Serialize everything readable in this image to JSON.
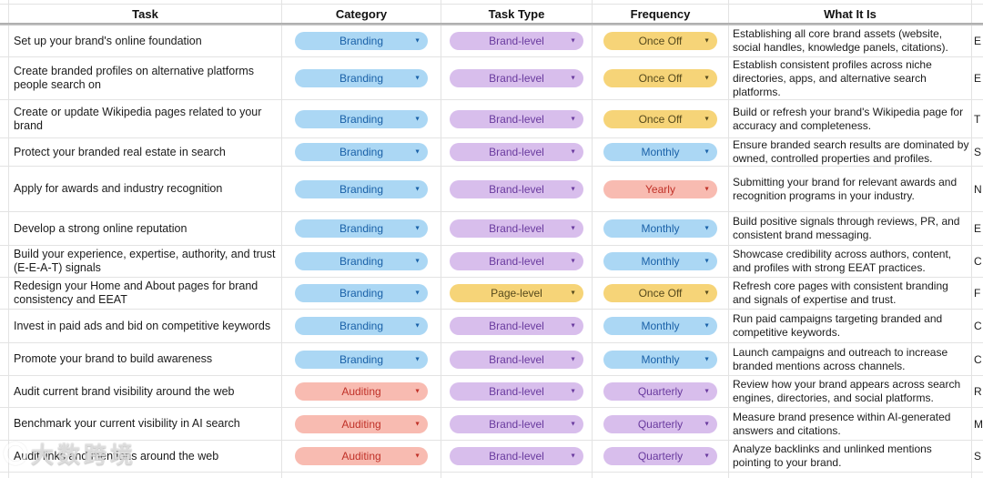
{
  "table": {
    "headers": [
      "Task",
      "Category",
      "Task Type",
      "Frequency",
      "What It Is"
    ],
    "rows": [
      {
        "task": "Set up your brand's online foundation",
        "category": "Branding",
        "task_type": "Brand-level",
        "frequency": "Once Off",
        "what_it_is": "Establishing all core brand assets (website, social handles, knowledge panels, citations).",
        "next_col_fragment": "E"
      },
      {
        "task": "Create branded profiles on alternative platforms people search on",
        "category": "Branding",
        "task_type": "Brand-level",
        "frequency": "Once Off",
        "what_it_is": "Establish consistent profiles across niche directories, apps, and alternative search platforms.",
        "next_col_fragment": "E"
      },
      {
        "task": "Create or update Wikipedia pages related to your brand",
        "category": "Branding",
        "task_type": "Brand-level",
        "frequency": "Once Off",
        "what_it_is": "Build or refresh your brand's Wikipedia page for accuracy and completeness.",
        "next_col_fragment": "T"
      },
      {
        "task": "Protect your branded real estate in search",
        "category": "Branding",
        "task_type": "Brand-level",
        "frequency": "Monthly",
        "what_it_is": "Ensure branded search results are dominated by owned, controlled properties and profiles.",
        "next_col_fragment": "S"
      },
      {
        "task": "Apply for awards and industry recognition",
        "category": "Branding",
        "task_type": "Brand-level",
        "frequency": "Yearly",
        "what_it_is": "Submitting your brand for relevant awards and recognition programs in your industry.",
        "next_col_fragment": "N"
      },
      {
        "task": "Develop a strong online reputation",
        "category": "Branding",
        "task_type": "Brand-level",
        "frequency": "Monthly",
        "what_it_is": "Build positive signals through reviews, PR, and consistent brand messaging.",
        "next_col_fragment": "E"
      },
      {
        "task": "Build your experience, expertise, authority, and trust (E-E-A-T) signals",
        "category": "Branding",
        "task_type": "Brand-level",
        "frequency": "Monthly",
        "what_it_is": "Showcase credibility across authors, content, and profiles with strong EEAT practices.",
        "next_col_fragment": "C"
      },
      {
        "task": "Redesign your Home and About pages for brand consistency and EEAT",
        "category": "Branding",
        "task_type": "Page-level",
        "frequency": "Once Off",
        "what_it_is": "Refresh core pages with consistent branding and signals of expertise and trust.",
        "next_col_fragment": "F"
      },
      {
        "task": "Invest in paid ads and bid on competitive keywords",
        "category": "Branding",
        "task_type": "Brand-level",
        "frequency": "Monthly",
        "what_it_is": "Run paid campaigns targeting branded and competitive keywords.",
        "next_col_fragment": "C"
      },
      {
        "task": "Promote your brand to build awareness",
        "category": "Branding",
        "task_type": "Brand-level",
        "frequency": "Monthly",
        "what_it_is": "Launch campaigns and outreach to increase branded mentions across channels.",
        "next_col_fragment": "C"
      },
      {
        "task": "Audit current brand visibility around the web",
        "category": "Auditing",
        "task_type": "Brand-level",
        "frequency": "Quarterly",
        "what_it_is": "Review how your brand appears across search engines, directories, and social platforms.",
        "next_col_fragment": "R"
      },
      {
        "task": "Benchmark your current visibility in AI search",
        "category": "Auditing",
        "task_type": "Brand-level",
        "frequency": "Quarterly",
        "what_it_is": "Measure brand presence within AI-generated answers and citations.",
        "next_col_fragment": "M"
      },
      {
        "task": "Audit links and mentions around the web",
        "category": "Auditing",
        "task_type": "Brand-level",
        "frequency": "Quarterly",
        "what_it_is": "Analyze backlinks and unlinked mentions pointing to your brand.",
        "next_col_fragment": "S"
      }
    ]
  },
  "chip_colors": {
    "blue": {
      "bg": "#ABD7F4",
      "text": "#1A61A8"
    },
    "purple": {
      "bg": "#D8BEEC",
      "text": "#693A9E"
    },
    "yellow": {
      "bg": "#F6D478",
      "text": "#55491C"
    },
    "red": {
      "bg": "#F8BBB1",
      "text": "#C03128"
    }
  },
  "chip_style_map": {
    "Branding": "blue",
    "Auditing": "red",
    "Brand-level": "purple",
    "Page-level": "yellow",
    "Once Off": "yellow",
    "Monthly": "blue",
    "Yearly": "red",
    "Quarterly": "purple"
  },
  "dropdown_arrow_glyph": "▼",
  "watermark": {
    "logo_icon": "circle-logo",
    "text": "大数跨境"
  }
}
